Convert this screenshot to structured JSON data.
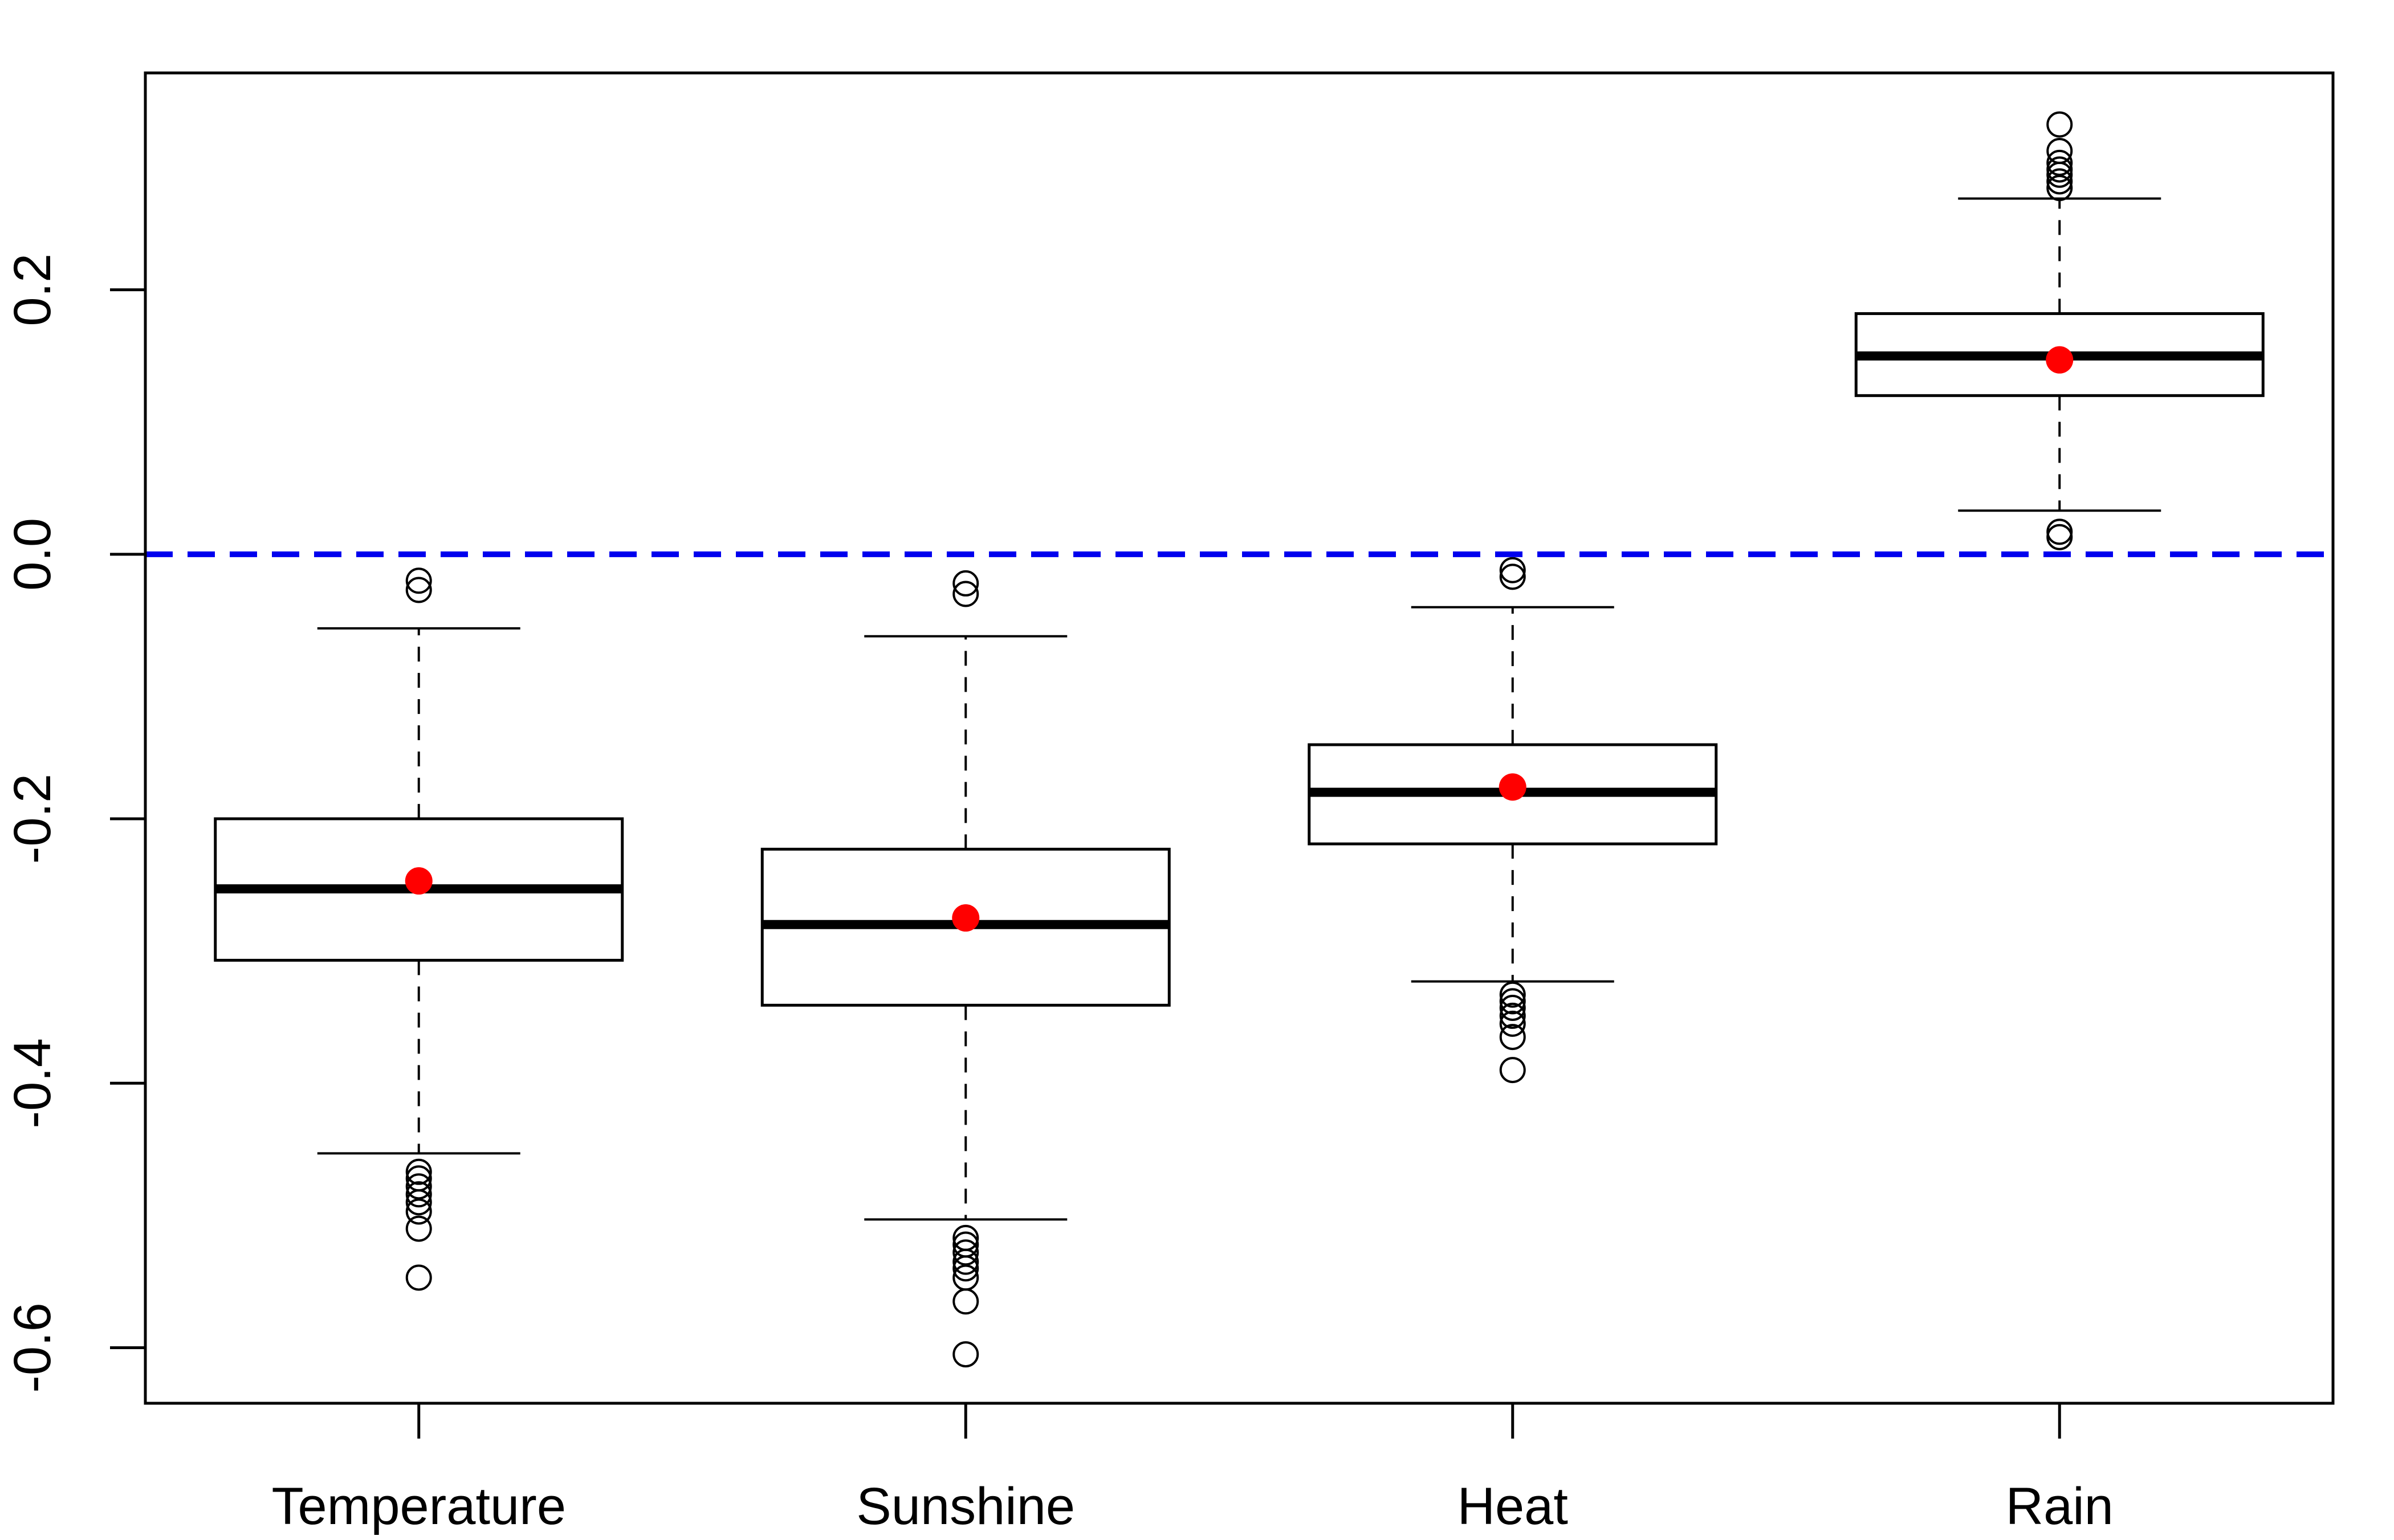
{
  "chart_data": {
    "type": "boxplot",
    "title": "",
    "xlabel": "",
    "ylabel": "",
    "categories": [
      "Temperature",
      "Sunshine",
      "Heat",
      "Rain"
    ],
    "y_ticks": [
      "-0.6",
      "-0.4",
      "-0.2",
      "0.0",
      "0.2"
    ],
    "y_tick_values": [
      -0.6,
      -0.4,
      -0.2,
      0.0,
      0.2
    ],
    "ylim": [
      -0.642,
      0.364
    ],
    "grid": false,
    "legend": "none",
    "boxes": [
      {
        "category": "Temperature",
        "whisker_low": -0.453,
        "q1": -0.307,
        "median": -0.253,
        "q3": -0.2,
        "whisker_high": -0.056,
        "mean": -0.247,
        "outliers": [
          -0.02,
          -0.027,
          -0.467,
          -0.472,
          -0.478,
          -0.484,
          -0.49,
          -0.497,
          -0.51,
          -0.547
        ]
      },
      {
        "category": "Sunshine",
        "whisker_low": -0.503,
        "q1": -0.341,
        "median": -0.28,
        "q3": -0.223,
        "whisker_high": -0.062,
        "mean": -0.275,
        "outliers": [
          -0.022,
          -0.03,
          -0.517,
          -0.522,
          -0.528,
          -0.535,
          -0.54,
          -0.547,
          -0.565,
          -0.605
        ]
      },
      {
        "category": "Heat",
        "whisker_low": -0.323,
        "q1": -0.219,
        "median": -0.18,
        "q3": -0.144,
        "whisker_high": -0.04,
        "mean": -0.176,
        "outliers": [
          -0.012,
          -0.017,
          -0.333,
          -0.338,
          -0.343,
          -0.349,
          -0.355,
          -0.365,
          -0.39
        ]
      },
      {
        "category": "Rain",
        "whisker_low": 0.033,
        "q1": 0.12,
        "median": 0.15,
        "q3": 0.182,
        "whisker_high": 0.269,
        "mean": 0.147,
        "outliers": [
          0.013,
          0.017,
          0.277,
          0.282,
          0.287,
          0.291,
          0.296,
          0.305,
          0.325
        ]
      }
    ],
    "reference_line": {
      "y": 0.0,
      "style": "dashed"
    },
    "colors": {
      "box_stroke": "#000000",
      "median": "#000000",
      "mean_marker": "#ff0000",
      "reference_line": "#0000ee",
      "outlier_stroke": "#000000"
    }
  }
}
